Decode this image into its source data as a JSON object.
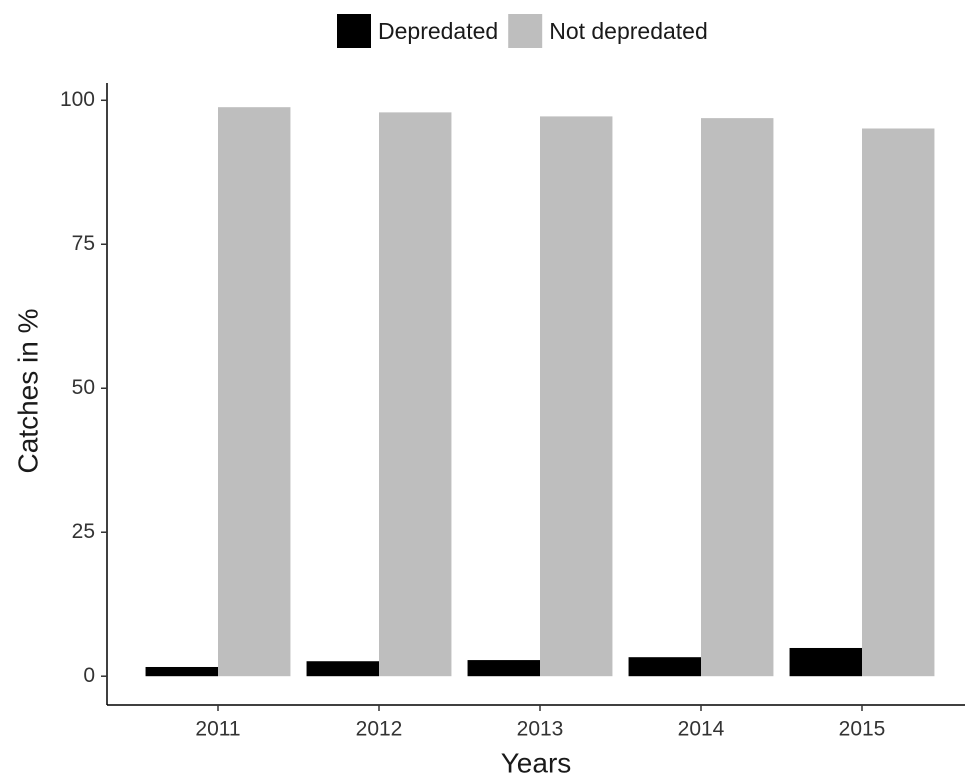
{
  "chart_data": {
    "type": "bar",
    "x_label": "Years",
    "y_label": "Catches in %",
    "categories": [
      "2011",
      "2012",
      "2013",
      "2014",
      "2015"
    ],
    "series": [
      {
        "name": "Depredated",
        "color": "#000000",
        "values": [
          1.6,
          2.6,
          2.8,
          3.3,
          4.9
        ]
      },
      {
        "name": "Not depredated",
        "color": "#bebebe",
        "values": [
          98.8,
          97.9,
          97.2,
          96.9,
          95.1
        ]
      }
    ],
    "ylim": [
      -5,
      103
    ],
    "yticks": [
      0,
      25,
      50,
      75,
      100
    ],
    "grid": false,
    "legend": "top"
  }
}
